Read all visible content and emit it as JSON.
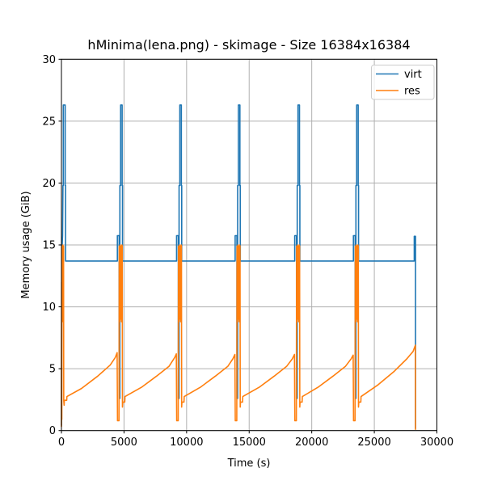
{
  "chart_data": {
    "type": "line",
    "title": "hMinima(lena.png) - skimage - Size 16384x16384",
    "xlabel": "Time (s)",
    "ylabel": "Memory usage (GiB)",
    "xlim": [
      0,
      30000
    ],
    "ylim": [
      0,
      30
    ],
    "xticks": [
      0,
      5000,
      10000,
      15000,
      20000,
      25000,
      30000
    ],
    "yticks": [
      0,
      5,
      10,
      15,
      20,
      25,
      30
    ],
    "grid": true,
    "grid_color": "#b0b0b0",
    "frame_color": "#000000",
    "legend": {
      "position": "upper right",
      "entries": [
        "virt",
        "res"
      ],
      "border_color": "#cccccc",
      "background": "#ffffff"
    },
    "series": [
      {
        "name": "virt",
        "color": "#1f77b4",
        "points": [
          [
            0,
            0.4
          ],
          [
            30,
            13.0
          ],
          [
            60,
            15.0
          ],
          [
            90,
            15.75
          ],
          [
            120,
            19.8
          ],
          [
            150,
            19.8
          ],
          [
            150,
            26.3
          ],
          [
            300,
            26.3
          ],
          [
            300,
            19.8
          ],
          [
            330,
            19.8
          ],
          [
            330,
            13.7
          ],
          [
            4470,
            13.7
          ],
          [
            4470,
            15.75
          ],
          [
            4610,
            15.75
          ],
          [
            4610,
            2.6
          ],
          [
            4670,
            2.6
          ],
          [
            4670,
            19.8
          ],
          [
            4730,
            19.8
          ],
          [
            4730,
            26.3
          ],
          [
            4850,
            26.3
          ],
          [
            4850,
            19.8
          ],
          [
            4880,
            19.8
          ],
          [
            4880,
            13.7
          ],
          [
            9200,
            13.7
          ],
          [
            9200,
            15.75
          ],
          [
            9340,
            15.75
          ],
          [
            9340,
            2.6
          ],
          [
            9400,
            2.6
          ],
          [
            9400,
            19.8
          ],
          [
            9460,
            19.8
          ],
          [
            9460,
            26.3
          ],
          [
            9580,
            26.3
          ],
          [
            9580,
            19.8
          ],
          [
            9610,
            19.8
          ],
          [
            9610,
            13.7
          ],
          [
            13880,
            13.7
          ],
          [
            13880,
            15.75
          ],
          [
            14020,
            15.75
          ],
          [
            14020,
            2.6
          ],
          [
            14080,
            2.6
          ],
          [
            14080,
            19.8
          ],
          [
            14140,
            19.8
          ],
          [
            14140,
            26.3
          ],
          [
            14260,
            26.3
          ],
          [
            14260,
            19.8
          ],
          [
            14290,
            19.8
          ],
          [
            14290,
            13.7
          ],
          [
            18640,
            13.7
          ],
          [
            18640,
            15.75
          ],
          [
            18780,
            15.75
          ],
          [
            18780,
            2.6
          ],
          [
            18840,
            2.6
          ],
          [
            18840,
            19.8
          ],
          [
            18900,
            19.8
          ],
          [
            18900,
            26.3
          ],
          [
            19020,
            26.3
          ],
          [
            19020,
            19.8
          ],
          [
            19050,
            19.8
          ],
          [
            19050,
            13.7
          ],
          [
            23330,
            13.7
          ],
          [
            23330,
            15.75
          ],
          [
            23470,
            15.75
          ],
          [
            23470,
            2.6
          ],
          [
            23530,
            2.6
          ],
          [
            23530,
            19.8
          ],
          [
            23590,
            19.8
          ],
          [
            23590,
            26.3
          ],
          [
            23710,
            26.3
          ],
          [
            23710,
            19.8
          ],
          [
            23740,
            19.8
          ],
          [
            23740,
            13.7
          ],
          [
            28190,
            13.7
          ],
          [
            28190,
            15.7
          ],
          [
            28290,
            15.7
          ],
          [
            28290,
            0.15
          ]
        ]
      },
      {
        "name": "res",
        "color": "#ff7f0e",
        "points": [
          [
            0,
            0.3
          ],
          [
            15,
            12.0
          ],
          [
            30,
            0.9
          ],
          [
            50,
            14.9
          ],
          [
            80,
            8.8
          ],
          [
            110,
            15.0
          ],
          [
            140,
            9.0
          ],
          [
            170,
            14.9
          ],
          [
            185,
            2.4
          ],
          [
            215,
            2.05
          ],
          [
            235,
            2.45
          ],
          [
            420,
            2.45
          ],
          [
            440,
            2.75
          ],
          [
            1600,
            3.4
          ],
          [
            2900,
            4.4
          ],
          [
            3900,
            5.3
          ],
          [
            4300,
            5.9
          ],
          [
            4450,
            6.3
          ],
          [
            4480,
            0.8
          ],
          [
            4600,
            0.8
          ],
          [
            4620,
            14.9
          ],
          [
            4655,
            8.8
          ],
          [
            4690,
            15.0
          ],
          [
            4725,
            9.0
          ],
          [
            4760,
            14.9
          ],
          [
            4795,
            8.8
          ],
          [
            4830,
            15.0
          ],
          [
            4860,
            14.9
          ],
          [
            4875,
            1.9
          ],
          [
            4895,
            2.3
          ],
          [
            5060,
            2.3
          ],
          [
            5080,
            2.75
          ],
          [
            6400,
            3.5
          ],
          [
            7600,
            4.4
          ],
          [
            8600,
            5.2
          ],
          [
            9050,
            5.9
          ],
          [
            9180,
            6.2
          ],
          [
            9210,
            0.8
          ],
          [
            9330,
            0.8
          ],
          [
            9350,
            14.9
          ],
          [
            9385,
            8.8
          ],
          [
            9420,
            15.0
          ],
          [
            9455,
            9.0
          ],
          [
            9490,
            14.9
          ],
          [
            9525,
            8.8
          ],
          [
            9560,
            15.0
          ],
          [
            9590,
            14.9
          ],
          [
            9605,
            1.9
          ],
          [
            9625,
            2.3
          ],
          [
            9790,
            2.3
          ],
          [
            9810,
            2.75
          ],
          [
            11100,
            3.5
          ],
          [
            12300,
            4.4
          ],
          [
            13300,
            5.2
          ],
          [
            13700,
            5.8
          ],
          [
            13860,
            6.15
          ],
          [
            13890,
            0.8
          ],
          [
            14010,
            0.8
          ],
          [
            14030,
            14.9
          ],
          [
            14065,
            8.8
          ],
          [
            14100,
            15.0
          ],
          [
            14135,
            9.0
          ],
          [
            14170,
            14.9
          ],
          [
            14205,
            8.8
          ],
          [
            14240,
            15.0
          ],
          [
            14270,
            14.9
          ],
          [
            14285,
            1.9
          ],
          [
            14305,
            2.3
          ],
          [
            14470,
            2.3
          ],
          [
            14490,
            2.75
          ],
          [
            15800,
            3.5
          ],
          [
            17000,
            4.4
          ],
          [
            18000,
            5.2
          ],
          [
            18450,
            5.8
          ],
          [
            18620,
            6.15
          ],
          [
            18650,
            0.8
          ],
          [
            18770,
            0.8
          ],
          [
            18790,
            14.9
          ],
          [
            18825,
            8.8
          ],
          [
            18860,
            15.0
          ],
          [
            18895,
            9.0
          ],
          [
            18930,
            14.9
          ],
          [
            18965,
            8.8
          ],
          [
            19000,
            15.0
          ],
          [
            19030,
            14.9
          ],
          [
            19045,
            1.9
          ],
          [
            19065,
            2.3
          ],
          [
            19230,
            2.3
          ],
          [
            19250,
            2.75
          ],
          [
            20500,
            3.5
          ],
          [
            21700,
            4.4
          ],
          [
            22700,
            5.2
          ],
          [
            23150,
            5.8
          ],
          [
            23310,
            6.1
          ],
          [
            23340,
            0.8
          ],
          [
            23460,
            0.8
          ],
          [
            23480,
            14.9
          ],
          [
            23515,
            8.8
          ],
          [
            23550,
            15.0
          ],
          [
            23585,
            9.0
          ],
          [
            23620,
            14.9
          ],
          [
            23655,
            8.8
          ],
          [
            23690,
            15.0
          ],
          [
            23720,
            14.9
          ],
          [
            23735,
            1.9
          ],
          [
            23755,
            2.3
          ],
          [
            23920,
            2.3
          ],
          [
            23940,
            2.75
          ],
          [
            25300,
            3.7
          ],
          [
            26600,
            4.8
          ],
          [
            27600,
            5.8
          ],
          [
            28100,
            6.4
          ],
          [
            28280,
            6.9
          ],
          [
            28290,
            0.05
          ]
        ]
      }
    ]
  }
}
